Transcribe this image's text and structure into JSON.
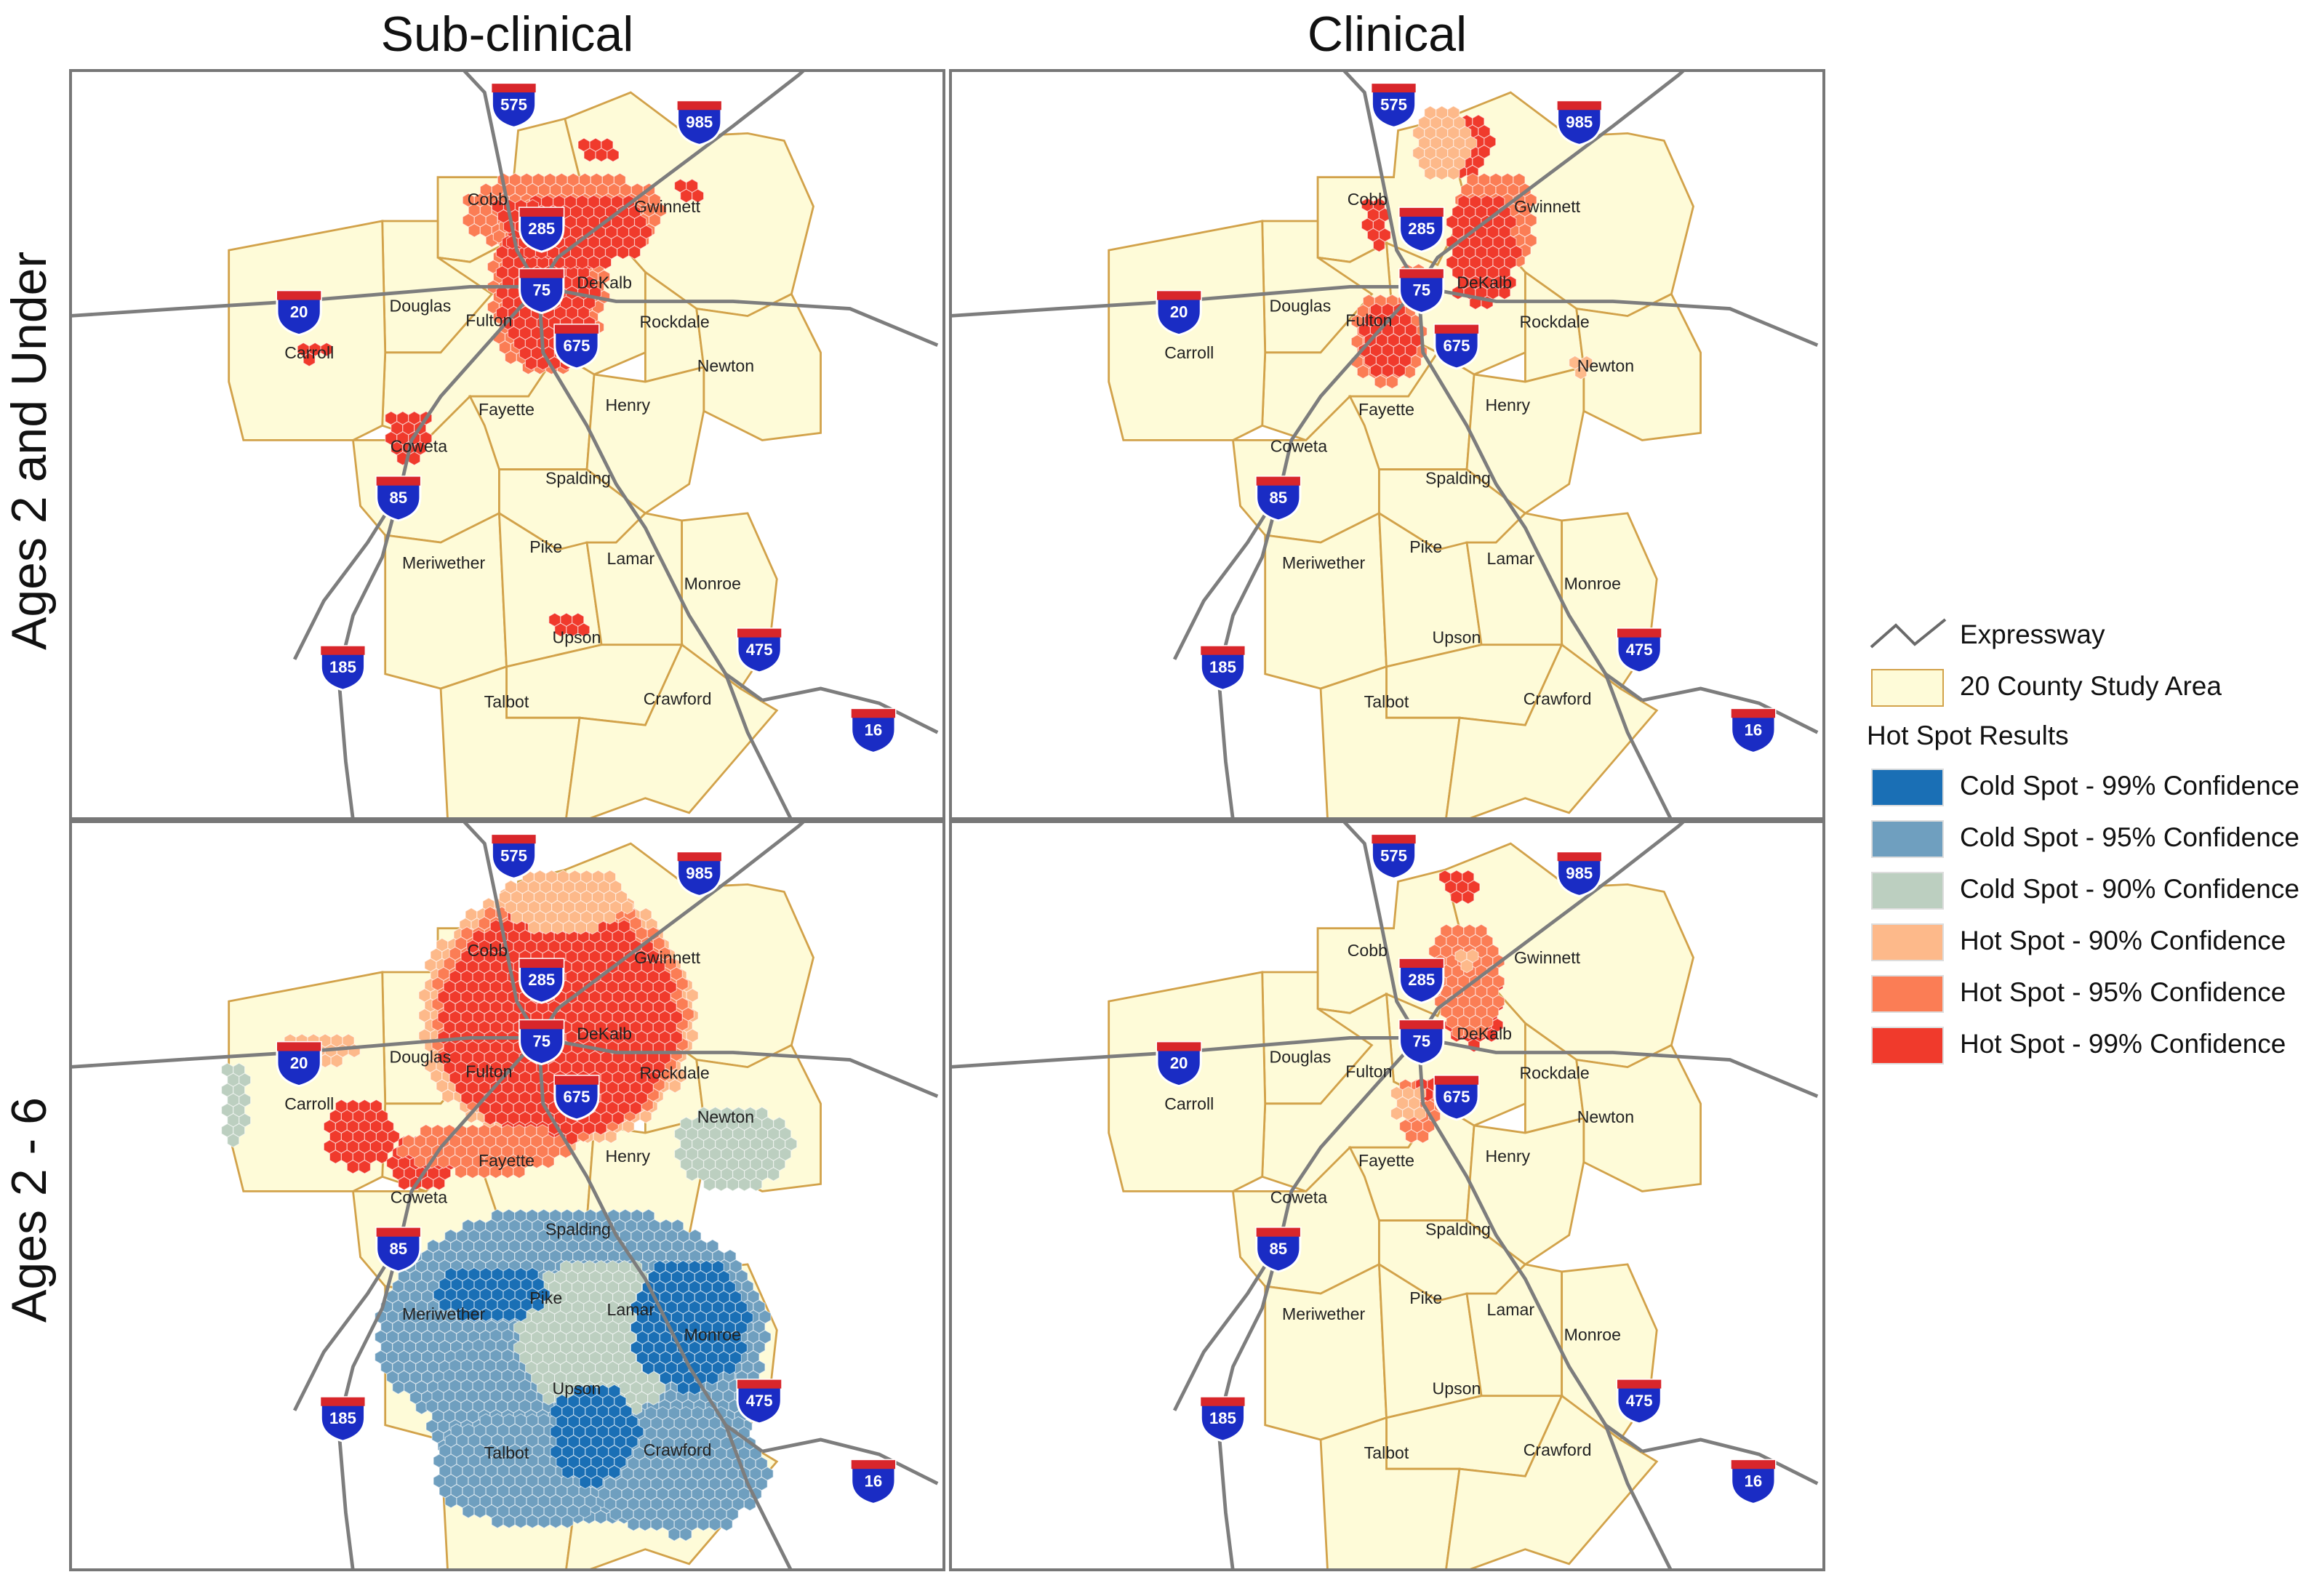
{
  "column_titles": [
    "Sub-clinical",
    "Clinical"
  ],
  "row_titles": [
    "Ages 2 and Under",
    "Ages 2 - 6"
  ],
  "counties": [
    {
      "name": "Cobb"
    },
    {
      "name": "Gwinnett"
    },
    {
      "name": "DeKalb"
    },
    {
      "name": "Douglas"
    },
    {
      "name": "Fulton"
    },
    {
      "name": "Rockdale"
    },
    {
      "name": "Carroll"
    },
    {
      "name": "Newton"
    },
    {
      "name": "Fayette"
    },
    {
      "name": "Henry"
    },
    {
      "name": "Coweta"
    },
    {
      "name": "Spalding"
    },
    {
      "name": "Meriwether"
    },
    {
      "name": "Pike"
    },
    {
      "name": "Lamar"
    },
    {
      "name": "Monroe"
    },
    {
      "name": "Upson"
    },
    {
      "name": "Talbot"
    },
    {
      "name": "Crawford"
    }
  ],
  "interstates": [
    "575",
    "985",
    "285",
    "75",
    "20",
    "675",
    "85",
    "185",
    "475",
    "16"
  ],
  "legend": {
    "expressway": "Expressway",
    "study_area": "20 County Study Area",
    "hotspot_heading": "Hot Spot Results",
    "classes": [
      {
        "label": "Cold Spot - 99% Confidence",
        "color": "#1a6fb5"
      },
      {
        "label": "Cold Spot - 95% Confidence",
        "color": "#6f9fbf"
      },
      {
        "label": "Cold Spot - 90% Confidence",
        "color": "#bccfc0"
      },
      {
        "label": "Hot Spot - 90% Confidence",
        "color": "#fdb98a"
      },
      {
        "label": "Hot Spot - 95% Confidence",
        "color": "#fb7d55"
      },
      {
        "label": "Hot Spot - 99% Confidence",
        "color": "#f03a2c"
      }
    ]
  },
  "colors": {
    "study_area_fill": "#fefbd8",
    "county_border": "#d2a24a",
    "expressway": "#7d7d7d"
  }
}
